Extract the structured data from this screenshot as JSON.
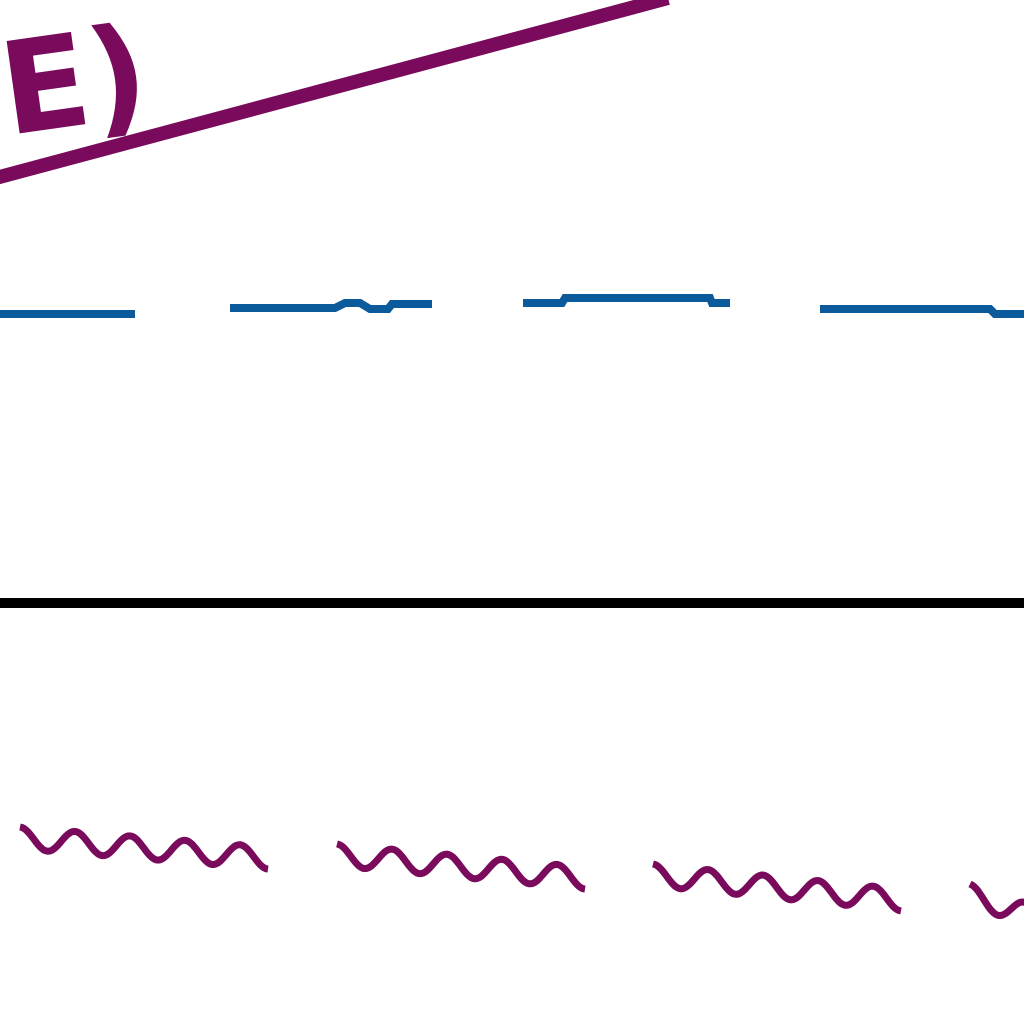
{
  "label": "E)"
}
